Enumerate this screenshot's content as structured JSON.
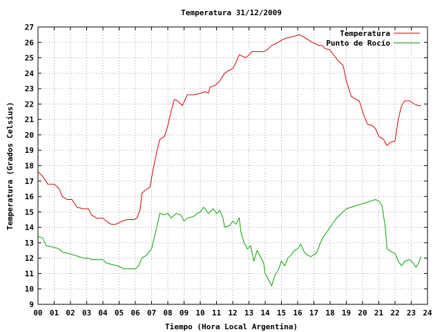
{
  "chart_data": {
    "type": "line",
    "title": "Temperatura 31/12/2009",
    "xlabel": "Tiempo (Hora Local Argentina)",
    "ylabel": "Temperatura (Grados Celsius)",
    "xlim": [
      0,
      24
    ],
    "ylim": [
      9,
      27
    ],
    "x_ticks": [
      "00",
      "01",
      "02",
      "03",
      "04",
      "05",
      "06",
      "07",
      "08",
      "09",
      "10",
      "11",
      "12",
      "13",
      "14",
      "15",
      "16",
      "17",
      "18",
      "19",
      "20",
      "21",
      "22",
      "23",
      "24"
    ],
    "y_ticks": [
      9,
      10,
      11,
      12,
      13,
      14,
      15,
      16,
      17,
      18,
      19,
      20,
      21,
      22,
      23,
      24,
      25,
      26,
      27
    ],
    "grid": true,
    "legend_position": "top-right",
    "series": [
      {
        "name": "Temperatura",
        "color": "#cc0000",
        "points": [
          [
            0,
            17.6
          ],
          [
            0.3,
            17.3
          ],
          [
            0.6,
            16.8
          ],
          [
            1.0,
            16.8
          ],
          [
            1.3,
            16.5
          ],
          [
            1.5,
            16.0
          ],
          [
            1.8,
            15.8
          ],
          [
            2.1,
            15.8
          ],
          [
            2.4,
            15.3
          ],
          [
            2.8,
            15.2
          ],
          [
            3.1,
            15.2
          ],
          [
            3.3,
            14.8
          ],
          [
            3.6,
            14.6
          ],
          [
            4.0,
            14.6
          ],
          [
            4.2,
            14.4
          ],
          [
            4.5,
            14.2
          ],
          [
            4.8,
            14.2
          ],
          [
            5.0,
            14.3
          ],
          [
            5.2,
            14.4
          ],
          [
            5.5,
            14.5
          ],
          [
            5.9,
            14.5
          ],
          [
            6.1,
            14.6
          ],
          [
            6.3,
            15.2
          ],
          [
            6.4,
            16.2
          ],
          [
            6.6,
            16.4
          ],
          [
            6.9,
            16.6
          ],
          [
            7.1,
            17.8
          ],
          [
            7.3,
            18.8
          ],
          [
            7.5,
            19.7
          ],
          [
            7.8,
            19.9
          ],
          [
            8.0,
            20.6
          ],
          [
            8.2,
            21.5
          ],
          [
            8.4,
            22.3
          ],
          [
            8.6,
            22.2
          ],
          [
            8.9,
            21.9
          ],
          [
            9.2,
            22.6
          ],
          [
            9.6,
            22.6
          ],
          [
            10.0,
            22.7
          ],
          [
            10.3,
            22.8
          ],
          [
            10.5,
            22.7
          ],
          [
            10.6,
            23.1
          ],
          [
            10.9,
            23.2
          ],
          [
            11.2,
            23.5
          ],
          [
            11.5,
            24.0
          ],
          [
            11.8,
            24.2
          ],
          [
            12.0,
            24.3
          ],
          [
            12.2,
            24.7
          ],
          [
            12.4,
            25.2
          ],
          [
            12.6,
            25.1
          ],
          [
            12.8,
            25.0
          ],
          [
            13.0,
            25.2
          ],
          [
            13.2,
            25.4
          ],
          [
            13.5,
            25.4
          ],
          [
            13.9,
            25.4
          ],
          [
            14.1,
            25.5
          ],
          [
            14.4,
            25.8
          ],
          [
            14.8,
            26.0
          ],
          [
            15.1,
            26.2
          ],
          [
            15.4,
            26.3
          ],
          [
            15.8,
            26.4
          ],
          [
            16.1,
            26.5
          ],
          [
            16.3,
            26.4
          ],
          [
            16.6,
            26.2
          ],
          [
            16.9,
            26.0
          ],
          [
            17.1,
            25.9
          ],
          [
            17.3,
            25.8
          ],
          [
            17.5,
            25.8
          ],
          [
            17.7,
            25.6
          ],
          [
            18.0,
            25.5
          ],
          [
            18.2,
            25.2
          ],
          [
            18.5,
            24.8
          ],
          [
            18.8,
            24.5
          ],
          [
            19.0,
            23.5
          ],
          [
            19.3,
            22.5
          ],
          [
            19.6,
            22.3
          ],
          [
            19.8,
            22.2
          ],
          [
            20.0,
            21.5
          ],
          [
            20.3,
            20.7
          ],
          [
            20.6,
            20.6
          ],
          [
            20.8,
            20.4
          ],
          [
            21.0,
            19.9
          ],
          [
            21.3,
            19.7
          ],
          [
            21.5,
            19.3
          ],
          [
            21.7,
            19.5
          ],
          [
            22.0,
            19.6
          ],
          [
            22.2,
            21.0
          ],
          [
            22.4,
            21.9
          ],
          [
            22.6,
            22.2
          ],
          [
            22.9,
            22.2
          ],
          [
            23.2,
            22.0
          ],
          [
            23.4,
            21.9
          ],
          [
            23.6,
            21.9
          ]
        ]
      },
      {
        "name": "Punto de Rocío",
        "color": "#00a000",
        "points": [
          [
            0,
            13.4
          ],
          [
            0.3,
            13.3
          ],
          [
            0.5,
            12.8
          ],
          [
            1.0,
            12.7
          ],
          [
            1.3,
            12.6
          ],
          [
            1.5,
            12.4
          ],
          [
            1.9,
            12.3
          ],
          [
            2.2,
            12.2
          ],
          [
            2.5,
            12.1
          ],
          [
            2.8,
            12.0
          ],
          [
            3.1,
            12.0
          ],
          [
            3.3,
            11.9
          ],
          [
            3.7,
            11.9
          ],
          [
            4.0,
            11.9
          ],
          [
            4.2,
            11.7
          ],
          [
            4.5,
            11.6
          ],
          [
            4.9,
            11.5
          ],
          [
            5.1,
            11.4
          ],
          [
            5.3,
            11.3
          ],
          [
            5.6,
            11.3
          ],
          [
            6.0,
            11.3
          ],
          [
            6.2,
            11.5
          ],
          [
            6.4,
            12.0
          ],
          [
            6.7,
            12.2
          ],
          [
            7.0,
            12.6
          ],
          [
            7.3,
            13.9
          ],
          [
            7.5,
            14.9
          ],
          [
            7.8,
            14.8
          ],
          [
            8.0,
            14.9
          ],
          [
            8.2,
            14.6
          ],
          [
            8.5,
            14.9
          ],
          [
            8.8,
            14.8
          ],
          [
            9.0,
            14.4
          ],
          [
            9.2,
            14.6
          ],
          [
            9.6,
            14.7
          ],
          [
            9.8,
            14.9
          ],
          [
            10.0,
            15.0
          ],
          [
            10.2,
            15.3
          ],
          [
            10.5,
            14.9
          ],
          [
            10.8,
            15.2
          ],
          [
            11.0,
            14.9
          ],
          [
            11.2,
            15.1
          ],
          [
            11.4,
            14.6
          ],
          [
            11.5,
            14.0
          ],
          [
            11.8,
            14.1
          ],
          [
            12.0,
            14.4
          ],
          [
            12.2,
            14.2
          ],
          [
            12.4,
            14.6
          ],
          [
            12.5,
            13.7
          ],
          [
            12.7,
            13.0
          ],
          [
            12.9,
            12.6
          ],
          [
            13.1,
            12.8
          ],
          [
            13.3,
            11.8
          ],
          [
            13.5,
            12.5
          ],
          [
            13.7,
            12.1
          ],
          [
            13.9,
            11.7
          ],
          [
            14.0,
            11.0
          ],
          [
            14.2,
            10.6
          ],
          [
            14.4,
            10.2
          ],
          [
            14.6,
            10.9
          ],
          [
            14.8,
            11.2
          ],
          [
            15.0,
            11.8
          ],
          [
            15.2,
            11.5
          ],
          [
            15.4,
            12.0
          ],
          [
            15.6,
            12.2
          ],
          [
            15.8,
            12.5
          ],
          [
            16.0,
            12.6
          ],
          [
            16.2,
            12.9
          ],
          [
            16.4,
            12.4
          ],
          [
            16.6,
            12.2
          ],
          [
            16.8,
            12.1
          ],
          [
            17.0,
            12.2
          ],
          [
            17.2,
            12.4
          ],
          [
            17.4,
            13.0
          ],
          [
            17.6,
            13.4
          ],
          [
            17.8,
            13.7
          ],
          [
            18.0,
            14.0
          ],
          [
            18.2,
            14.3
          ],
          [
            18.4,
            14.6
          ],
          [
            18.6,
            14.8
          ],
          [
            18.8,
            15.0
          ],
          [
            19.0,
            15.2
          ],
          [
            19.3,
            15.3
          ],
          [
            19.6,
            15.4
          ],
          [
            19.9,
            15.5
          ],
          [
            20.2,
            15.6
          ],
          [
            20.5,
            15.7
          ],
          [
            20.8,
            15.8
          ],
          [
            21.0,
            15.7
          ],
          [
            21.2,
            15.4
          ],
          [
            21.4,
            14.0
          ],
          [
            21.5,
            12.6
          ],
          [
            21.8,
            12.4
          ],
          [
            22.0,
            12.3
          ],
          [
            22.2,
            11.8
          ],
          [
            22.4,
            11.5
          ],
          [
            22.6,
            11.8
          ],
          [
            22.9,
            11.9
          ],
          [
            23.1,
            11.7
          ],
          [
            23.3,
            11.4
          ],
          [
            23.5,
            11.8
          ],
          [
            23.6,
            12.1
          ]
        ]
      }
    ]
  }
}
